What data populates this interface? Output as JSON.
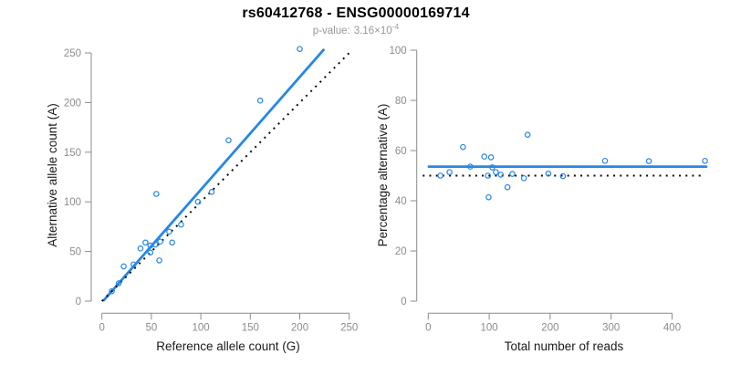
{
  "header": {
    "title": "rs60412768 - ENSG00000169714",
    "pvalue": {
      "label": "p-value:",
      "mantissa": "3.16",
      "times_sign": "×",
      "base": "10",
      "exponent": "-4"
    }
  },
  "colors": {
    "accent_blue": "#2787e3",
    "dotted_black": "#0a0a0a",
    "axis_gray": "#8c8c8c",
    "tick_label_gray": "#8c8c8c",
    "subtitle_gray": "#979797",
    "title_black": "#000000",
    "background": "#ffffff"
  },
  "chart_data": [
    {
      "type": "scatter",
      "title": "",
      "xlabel": "Reference allele count (G)",
      "ylabel": "Alternative allele count (A)",
      "xlim": [
        0,
        250
      ],
      "ylim": [
        0,
        250
      ],
      "xticks": [
        0,
        50,
        100,
        150,
        200,
        250
      ],
      "yticks": [
        0,
        50,
        100,
        150,
        200,
        250
      ],
      "grid": false,
      "legend_position": "none",
      "marker": "open-circle",
      "marker_color": "#2787e3",
      "points": [
        [
          10,
          10
        ],
        [
          17,
          18
        ],
        [
          22,
          35
        ],
        [
          32,
          37
        ],
        [
          39,
          53
        ],
        [
          44,
          59
        ],
        [
          49,
          56
        ],
        [
          54,
          57
        ],
        [
          49,
          49
        ],
        [
          59,
          60
        ],
        [
          68,
          70
        ],
        [
          71,
          59
        ],
        [
          80,
          77
        ],
        [
          58,
          41
        ],
        [
          55,
          108
        ],
        [
          97,
          100
        ],
        [
          111,
          110
        ],
        [
          128,
          162
        ],
        [
          160,
          202
        ],
        [
          200,
          254
        ]
      ],
      "lines": [
        {
          "name": "regression-line",
          "x1": 2,
          "y1": 1,
          "x2": 224,
          "y2": 253,
          "style": "solid",
          "color": "#2787e3",
          "width": 2.8
        },
        {
          "name": "identity-line",
          "x1": 0,
          "y1": 0,
          "x2": 253,
          "y2": 253,
          "style": "dotted",
          "color": "#0a0a0a",
          "width": 2
        }
      ]
    },
    {
      "type": "scatter",
      "title": "",
      "xlabel": "Total number of reads",
      "ylabel": "Percentage alternative (A)",
      "xlim": [
        0,
        455
      ],
      "ylim": [
        0,
        100
      ],
      "xticks": [
        0,
        100,
        200,
        300,
        400
      ],
      "yticks": [
        0,
        20,
        40,
        60,
        80,
        100
      ],
      "grid": false,
      "legend_position": "none",
      "marker": "open-circle",
      "marker_color": "#2787e3",
      "points": [
        [
          20,
          50.0
        ],
        [
          35,
          51.4
        ],
        [
          57,
          61.4
        ],
        [
          69,
          53.6
        ],
        [
          92,
          57.6
        ],
        [
          103,
          57.3
        ],
        [
          105,
          53.3
        ],
        [
          111,
          51.4
        ],
        [
          98,
          50.0
        ],
        [
          119,
          50.4
        ],
        [
          138,
          50.7
        ],
        [
          130,
          45.4
        ],
        [
          157,
          49.0
        ],
        [
          99,
          41.4
        ],
        [
          163,
          66.3
        ],
        [
          197,
          50.8
        ],
        [
          221,
          49.8
        ],
        [
          290,
          55.9
        ],
        [
          362,
          55.8
        ],
        [
          454,
          55.9
        ]
      ],
      "lines": [
        {
          "name": "fitted-percentage-line",
          "x1": 1,
          "y1": 53.6,
          "x2": 456,
          "y2": 53.6,
          "style": "solid",
          "color": "#2787e3",
          "width": 2.8
        },
        {
          "name": "expected-50-percent-line",
          "x1": -9,
          "y1": 50,
          "x2": 450,
          "y2": 50,
          "style": "dotted",
          "color": "#0a0a0a",
          "width": 2
        }
      ]
    }
  ]
}
